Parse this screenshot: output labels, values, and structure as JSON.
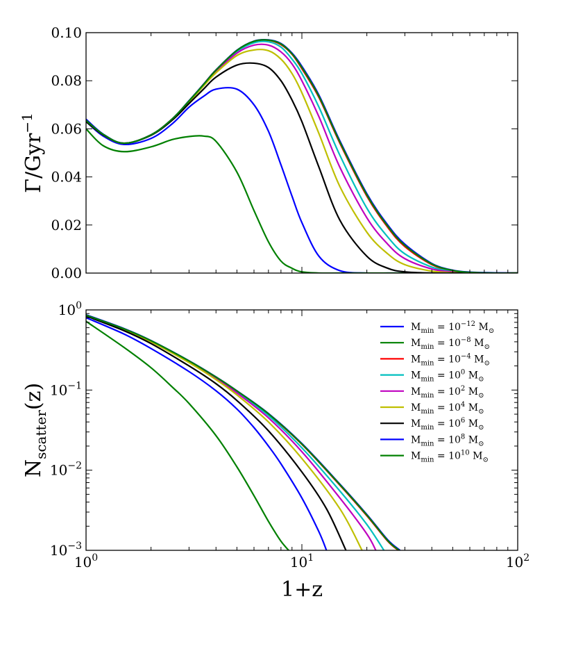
{
  "chart_data": [
    {
      "type": "line",
      "panel": "top",
      "xscale": "log",
      "xlim": [
        1,
        100
      ],
      "ylim": [
        0,
        0.1
      ],
      "xlabel": "",
      "ylabel": "Γ/Gyr⁻¹",
      "ytick_labels": [
        "0.00",
        "0.02",
        "0.04",
        "0.06",
        "0.08",
        "0.10"
      ],
      "yticks": [
        0,
        0.02,
        0.04,
        0.06,
        0.08,
        0.1
      ],
      "x": [
        1,
        1.2,
        1.5,
        2,
        2.5,
        3,
        3.5,
        4,
        5,
        6,
        7,
        8,
        9,
        10,
        12,
        15,
        20,
        25,
        30,
        40,
        50,
        60,
        80,
        100
      ],
      "series": [
        {
          "name": "M_min = 10^-12 M_sun",
          "color": "#0000ff",
          "values": [
            0.063,
            0.057,
            0.0535,
            0.056,
            0.062,
            0.069,
            0.0735,
            0.0765,
            0.0765,
            0.07,
            0.059,
            0.045,
            0.032,
            0.021,
            0.007,
            0.001,
            0.0,
            0.0,
            0.0,
            0.0,
            0.0,
            0.0,
            0.0,
            0.0
          ]
        },
        {
          "name": "M_min = 10^-8 M_sun",
          "color": "#008000",
          "values": [
            0.06,
            0.053,
            0.0505,
            0.0525,
            0.0555,
            0.0568,
            0.057,
            0.0548,
            0.042,
            0.026,
            0.013,
            0.005,
            0.002,
            0.0005,
            0.0,
            0.0,
            0.0,
            0.0,
            0.0,
            0.0,
            0.0,
            0.0,
            0.0,
            0.0
          ]
        },
        {
          "name": "M_min = 10^-4 M_sun",
          "color": "#ff0000",
          "values": [
            0.063,
            0.0575,
            0.054,
            0.0575,
            0.064,
            0.0715,
            0.0785,
            0.0845,
            0.0925,
            0.0963,
            0.0968,
            0.095,
            0.091,
            0.085,
            0.073,
            0.054,
            0.032,
            0.019,
            0.011,
            0.0035,
            0.001,
            0.0003,
            0.0,
            0.0
          ]
        },
        {
          "name": "M_min = 10^0 M_sun",
          "color": "#00bfbf",
          "values": [
            0.063,
            0.0575,
            0.054,
            0.0575,
            0.064,
            0.0715,
            0.0783,
            0.0843,
            0.0922,
            0.0958,
            0.0962,
            0.094,
            0.089,
            0.083,
            0.069,
            0.049,
            0.027,
            0.015,
            0.008,
            0.0025,
            0.0007,
            0.0002,
            0.0,
            0.0
          ]
        },
        {
          "name": "M_min = 10^2 M_sun",
          "color": "#bf00bf",
          "values": [
            0.063,
            0.0575,
            0.054,
            0.0575,
            0.064,
            0.0713,
            0.078,
            0.0838,
            0.0915,
            0.0948,
            0.0948,
            0.092,
            0.087,
            0.08,
            0.065,
            0.044,
            0.023,
            0.012,
            0.006,
            0.0017,
            0.0005,
            0.0001,
            0.0,
            0.0
          ]
        },
        {
          "name": "M_min = 10^4 M_sun",
          "color": "#bfbf00",
          "values": [
            0.063,
            0.0575,
            0.054,
            0.0575,
            0.0638,
            0.0712,
            0.0778,
            0.0833,
            0.0905,
            0.0928,
            0.0925,
            0.089,
            0.083,
            0.075,
            0.058,
            0.036,
            0.017,
            0.008,
            0.0035,
            0.0008,
            0.0002,
            0.0,
            0.0,
            0.0
          ]
        },
        {
          "name": "M_min = 10^6 M_sun",
          "color": "#000000",
          "values": [
            0.063,
            0.0575,
            0.054,
            0.0573,
            0.0635,
            0.0705,
            0.0765,
            0.0815,
            0.0865,
            0.0873,
            0.0855,
            0.08,
            0.072,
            0.063,
            0.044,
            0.022,
            0.007,
            0.002,
            0.0005,
            0.0,
            0.0,
            0.0,
            0.0,
            0.0
          ]
        },
        {
          "name": "M_min = 10^8 M_sun",
          "color": "#0000ff",
          "values": [
            0.064,
            0.0578,
            0.054,
            0.0575,
            0.064,
            0.0717,
            0.0785,
            0.0845,
            0.0927,
            0.0965,
            0.097,
            0.0955,
            0.0915,
            0.086,
            0.074,
            0.055,
            0.033,
            0.02,
            0.012,
            0.004,
            0.0012,
            0.0004,
            0.0001,
            0.0
          ]
        },
        {
          "name": "M_min = 10^10 M_sun",
          "color": "#008000",
          "values": [
            0.0635,
            0.0577,
            0.054,
            0.0575,
            0.064,
            0.0716,
            0.0784,
            0.0844,
            0.0926,
            0.0964,
            0.0969,
            0.0953,
            0.0912,
            0.0855,
            0.0735,
            0.0545,
            0.0325,
            0.0195,
            0.0115,
            0.0038,
            0.0011,
            0.0003,
            0.0,
            0.0
          ]
        }
      ]
    },
    {
      "type": "line",
      "panel": "bottom",
      "xscale": "log",
      "yscale": "log",
      "xlim": [
        1,
        100
      ],
      "ylim": [
        0.001,
        1
      ],
      "xlabel": "1+z",
      "ylabel": "N_scatter(z)",
      "xticks": [
        1,
        10,
        100
      ],
      "xtick_labels": [
        {
          "base": "10",
          "exp": "0"
        },
        {
          "base": "10",
          "exp": "1"
        },
        {
          "base": "10",
          "exp": "2"
        }
      ],
      "yticks": [
        0.001,
        0.01,
        0.1,
        1
      ],
      "ytick_labels": [
        {
          "base": "10",
          "exp": "−3"
        },
        {
          "base": "10",
          "exp": "−2"
        },
        {
          "base": "10",
          "exp": "−1"
        },
        {
          "base": "10",
          "exp": "0"
        }
      ],
      "legend_location": "upper right",
      "legend": [
        {
          "label_base": "M",
          "label_sub": "min",
          "label_mid": " = 10",
          "label_exp": "−12",
          "label_unit": " M",
          "label_unit_sub": "⊙",
          "color": "#0000ff"
        },
        {
          "label_base": "M",
          "label_sub": "min",
          "label_mid": " = 10",
          "label_exp": "−8",
          "label_unit": " M",
          "label_unit_sub": "⊙",
          "color": "#008000"
        },
        {
          "label_base": "M",
          "label_sub": "min",
          "label_mid": " = 10",
          "label_exp": "−4",
          "label_unit": " M",
          "label_unit_sub": "⊙",
          "color": "#ff0000"
        },
        {
          "label_base": "M",
          "label_sub": "min",
          "label_mid": " = 10",
          "label_exp": "0",
          "label_unit": " M",
          "label_unit_sub": "⊙",
          "color": "#00bfbf"
        },
        {
          "label_base": "M",
          "label_sub": "min",
          "label_mid": " = 10",
          "label_exp": "2",
          "label_unit": " M",
          "label_unit_sub": "⊙",
          "color": "#bf00bf"
        },
        {
          "label_base": "M",
          "label_sub": "min",
          "label_mid": " = 10",
          "label_exp": "4",
          "label_unit": " M",
          "label_unit_sub": "⊙",
          "color": "#bfbf00"
        },
        {
          "label_base": "M",
          "label_sub": "min",
          "label_mid": " = 10",
          "label_exp": "6",
          "label_unit": " M",
          "label_unit_sub": "⊙",
          "color": "#000000"
        },
        {
          "label_base": "M",
          "label_sub": "min",
          "label_mid": " = 10",
          "label_exp": "8",
          "label_unit": " M",
          "label_unit_sub": "⊙",
          "color": "#0000ff"
        },
        {
          "label_base": "M",
          "label_sub": "min",
          "label_mid": " = 10",
          "label_exp": "10",
          "label_unit": " M",
          "label_unit_sub": "⊙",
          "color": "#008000"
        }
      ],
      "series": [
        {
          "name": "M_min = 10^-12 M_sun",
          "color": "#0000ff",
          "x": [
            1,
            1.5,
            2,
            3,
            4,
            5,
            6,
            7,
            8,
            10,
            12,
            13
          ],
          "values": [
            0.8,
            0.5,
            0.33,
            0.17,
            0.098,
            0.058,
            0.034,
            0.02,
            0.012,
            0.0045,
            0.0017,
            0.001
          ]
        },
        {
          "name": "M_min = 10^-8 M_sun",
          "color": "#008000",
          "x": [
            1,
            1.5,
            2,
            2.5,
            3,
            4,
            5,
            6,
            7,
            8,
            9
          ],
          "values": [
            0.72,
            0.34,
            0.19,
            0.11,
            0.068,
            0.027,
            0.011,
            0.0048,
            0.0023,
            0.0013,
            0.0009
          ]
        },
        {
          "name": "M_min = 10^-4 M_sun",
          "color": "#ff0000",
          "x": [
            1,
            1.5,
            2,
            3,
            4,
            5,
            7,
            10,
            15,
            20,
            25,
            28
          ],
          "values": [
            0.86,
            0.58,
            0.41,
            0.23,
            0.145,
            0.097,
            0.05,
            0.021,
            0.0065,
            0.0027,
            0.0013,
            0.001
          ]
        },
        {
          "name": "M_min = 10^0 M_sun",
          "color": "#00bfbf",
          "x": [
            1,
            1.5,
            2,
            3,
            4,
            5,
            7,
            10,
            15,
            20,
            24
          ],
          "values": [
            0.86,
            0.58,
            0.41,
            0.23,
            0.143,
            0.095,
            0.048,
            0.019,
            0.0055,
            0.0021,
            0.001
          ]
        },
        {
          "name": "M_min = 10^2 M_sun",
          "color": "#bf00bf",
          "x": [
            1,
            1.5,
            2,
            3,
            4,
            5,
            7,
            10,
            15,
            20,
            22
          ],
          "values": [
            0.86,
            0.58,
            0.4,
            0.225,
            0.14,
            0.092,
            0.045,
            0.017,
            0.0045,
            0.0016,
            0.001
          ]
        },
        {
          "name": "M_min = 10^4 M_sun",
          "color": "#bfbf00",
          "x": [
            1,
            1.5,
            2,
            3,
            4,
            5,
            7,
            10,
            15,
            19
          ],
          "values": [
            0.85,
            0.57,
            0.4,
            0.22,
            0.135,
            0.087,
            0.04,
            0.014,
            0.0033,
            0.001
          ]
        },
        {
          "name": "M_min = 10^6 M_sun",
          "color": "#000000",
          "x": [
            1,
            1.5,
            2,
            3,
            4,
            5,
            7,
            10,
            13,
            16
          ],
          "values": [
            0.84,
            0.55,
            0.38,
            0.2,
            0.12,
            0.074,
            0.031,
            0.0095,
            0.0033,
            0.001
          ]
        },
        {
          "name": "M_min = 10^8 M_sun",
          "color": "#0000ff",
          "x": [
            1,
            1.5,
            2,
            3,
            4,
            5,
            7,
            10,
            15,
            20,
            25,
            28.5
          ],
          "values": [
            0.87,
            0.585,
            0.415,
            0.232,
            0.146,
            0.098,
            0.051,
            0.0215,
            0.0067,
            0.0028,
            0.00135,
            0.001
          ]
        },
        {
          "name": "M_min = 10^10 M_sun",
          "color": "#008000",
          "x": [
            1,
            1.5,
            2,
            3,
            4,
            5,
            7,
            10,
            15,
            20,
            25,
            28.2
          ],
          "values": [
            0.86,
            0.58,
            0.412,
            0.231,
            0.145,
            0.0975,
            0.0505,
            0.0212,
            0.0066,
            0.00275,
            0.00132,
            0.001
          ]
        }
      ]
    }
  ]
}
